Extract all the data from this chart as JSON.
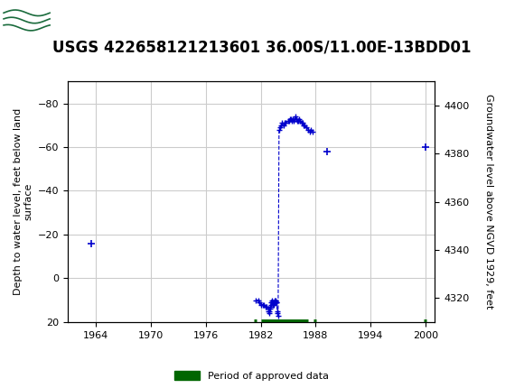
{
  "title": "USGS 422658121213601 36.00S/11.00E-13BDD01",
  "header_color": "#1a6b3c",
  "ylabel_left": "Depth to water level, feet below land\nsurface",
  "ylabel_right": "Groundwater level above NGVD 1929, feet",
  "xlim": [
    1961,
    2001
  ],
  "ylim_left": [
    20,
    -90
  ],
  "ylim_right": [
    4310,
    4410
  ],
  "xticks": [
    1964,
    1970,
    1976,
    1982,
    1988,
    1994,
    2000
  ],
  "yticks_left": [
    -80,
    -60,
    -40,
    -20,
    0,
    20
  ],
  "yticks_right": [
    4400,
    4380,
    4360,
    4340,
    4320
  ],
  "grid_color": "#cccccc",
  "bg_color": "#ffffff",
  "line_color": "#0000cc",
  "segments": [
    {
      "x": [
        1963.5
      ],
      "y": [
        -16
      ]
    },
    {
      "x": [
        1981.5,
        1981.7,
        1981.85,
        1982.05,
        1982.2,
        1982.35,
        1982.5,
        1982.65,
        1982.8
      ],
      "y": [
        10,
        10,
        11,
        12,
        12,
        12,
        13,
        13,
        14
      ]
    },
    {
      "x": [
        1982.85,
        1982.9,
        1982.95,
        1983.0,
        1983.05,
        1983.1,
        1983.15,
        1983.2,
        1983.25,
        1983.3,
        1983.35,
        1983.4,
        1983.45,
        1983.5,
        1983.55,
        1983.6,
        1983.65,
        1983.7,
        1983.75,
        1983.8,
        1983.85,
        1983.9,
        1984.0,
        1984.1,
        1984.2,
        1984.3,
        1984.5,
        1984.6,
        1984.7,
        1985.0,
        1985.1,
        1985.2,
        1985.3,
        1985.4,
        1985.5,
        1985.6,
        1985.7,
        1985.8,
        1985.9,
        1986.0,
        1986.1,
        1986.2,
        1986.3,
        1986.5,
        1986.6,
        1986.7,
        1986.8,
        1987.0,
        1987.2,
        1987.4,
        1987.5,
        1987.7
      ],
      "y": [
        15,
        15,
        16,
        14,
        13,
        12,
        11,
        10,
        11,
        11,
        12,
        12,
        11,
        10,
        11,
        11,
        10,
        11,
        11,
        15,
        16,
        17,
        -68,
        -69,
        -70,
        -71,
        -70,
        -71,
        -71,
        -72,
        -72,
        -73,
        -73,
        -72,
        -73,
        -72,
        -73,
        -74,
        -73,
        -72,
        -72,
        -73,
        -72,
        -71,
        -71,
        -70,
        -70,
        -69,
        -68,
        -67,
        -68,
        -67
      ]
    },
    {
      "x": [
        1989.2
      ],
      "y": [
        -58
      ]
    },
    {
      "x": [
        2000.0
      ],
      "y": [
        -60
      ]
    }
  ],
  "approved_segments": [
    [
      1981.3,
      1981.6
    ],
    [
      1982.05,
      1987.2
    ],
    [
      1987.8,
      1988.1
    ],
    [
      1999.8,
      2000.1
    ]
  ],
  "approved_y": 20,
  "approved_color": "#006600",
  "legend_label": "Period of approved data",
  "title_fontsize": 12,
  "axis_fontsize": 8,
  "tick_fontsize": 8
}
